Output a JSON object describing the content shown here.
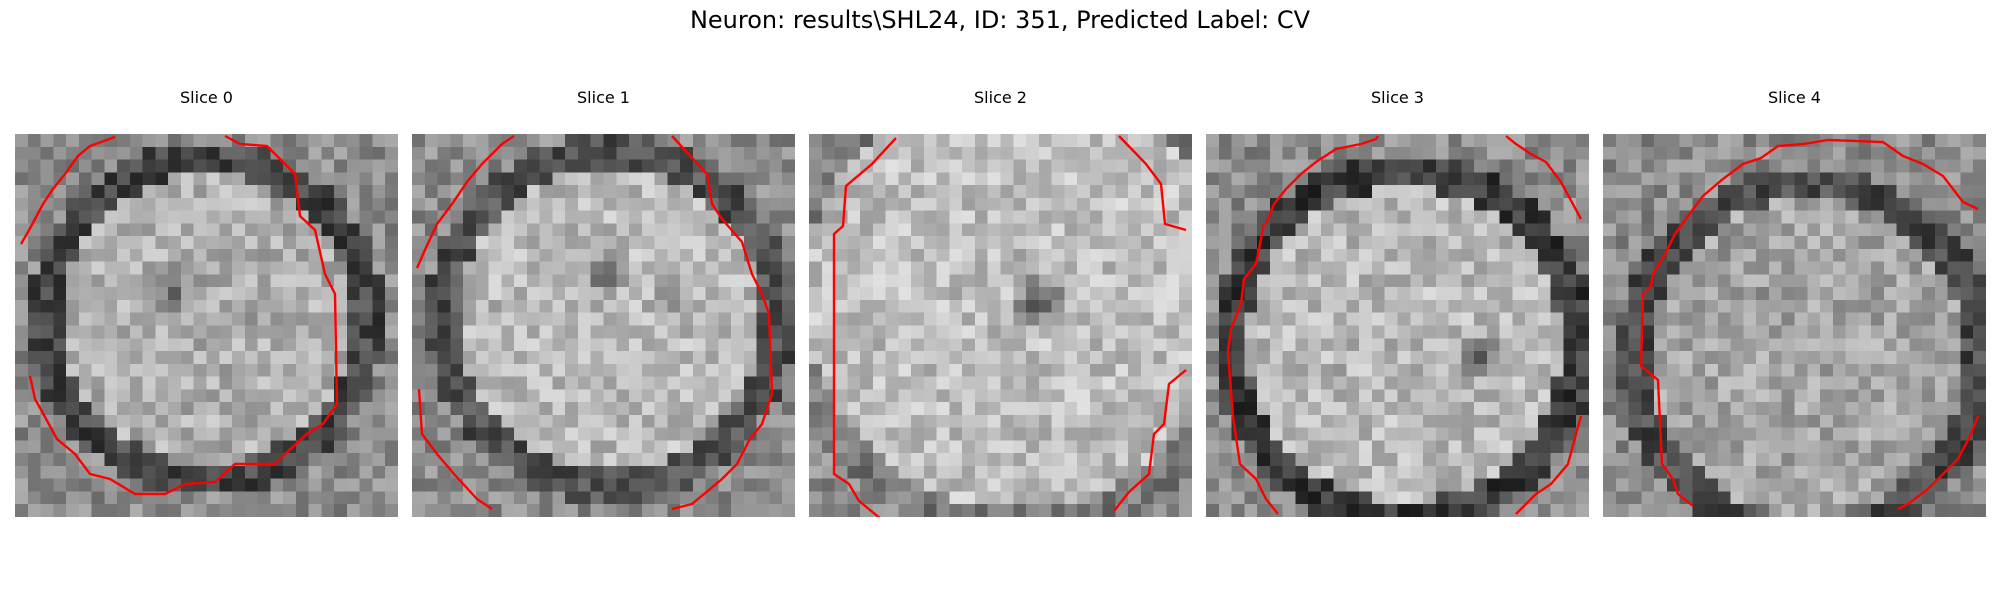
{
  "figure": {
    "title": "Neuron: results\\SHL24, ID: 351, Predicted Label: CV"
  },
  "slices": [
    {
      "label": "Slice 0"
    },
    {
      "label": "Slice 1"
    },
    {
      "label": "Slice 2"
    },
    {
      "label": "Slice 3"
    },
    {
      "label": "Slice 4"
    }
  ],
  "colors": {
    "contour": "#ff0000",
    "colormap": "gray"
  }
}
